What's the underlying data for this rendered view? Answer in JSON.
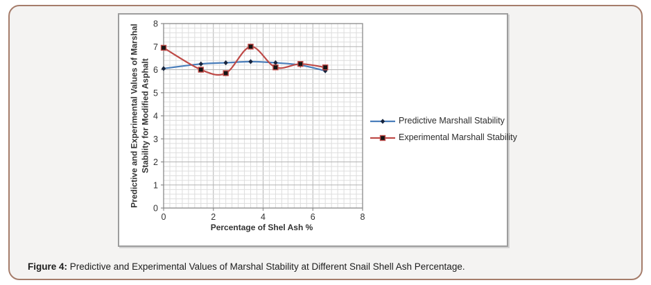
{
  "frame": {
    "background_color": "#f4f3f2",
    "border_color": "#a57c6a"
  },
  "caption": {
    "label": "Figure 4:",
    "text": "Predictive and Experimental Values of Marshal Stability at Different Snail Shell Ash Percentage."
  },
  "chart_data": {
    "type": "line",
    "x": [
      0,
      1.5,
      2.5,
      3.5,
      4.5,
      5.5,
      6.5
    ],
    "series": [
      {
        "name": "Predictive Marshall Stability",
        "color": "#4a7ebb",
        "marker": "diamond",
        "marker_color": "#16243e",
        "values": [
          6.05,
          6.25,
          6.3,
          6.35,
          6.3,
          6.2,
          5.95
        ]
      },
      {
        "name": "Experimental Marshall Stability",
        "color": "#be4a47",
        "marker": "square",
        "marker_color": "#141414",
        "values": [
          6.95,
          6.0,
          5.85,
          7.0,
          6.1,
          6.25,
          6.1
        ]
      }
    ],
    "title": "",
    "xlabel": "Percentage of Shel Ash %",
    "ylabel": "Predictive and Experimental Values of Marshal Stability for Modified Asphalt",
    "ylabel_lines": [
      "Predictive and Experimental Values of Marshal",
      "Stability for Modified Asphalt"
    ],
    "xlim": [
      0,
      8
    ],
    "ylim": [
      0,
      8
    ],
    "x_ticks": [
      0,
      2,
      4,
      6,
      8
    ],
    "y_ticks": [
      0,
      1,
      2,
      3,
      4,
      5,
      6,
      7,
      8
    ],
    "x_minor_step": 0.25,
    "y_minor_step": 0.2,
    "grid": true,
    "grid_minor_color": "#dddddd",
    "grid_major_color": "#b3b3b3",
    "axis_color": "#8a8a8a",
    "tick_text_color": "#333333",
    "legend_position": "right",
    "smoothed_lines": true
  }
}
